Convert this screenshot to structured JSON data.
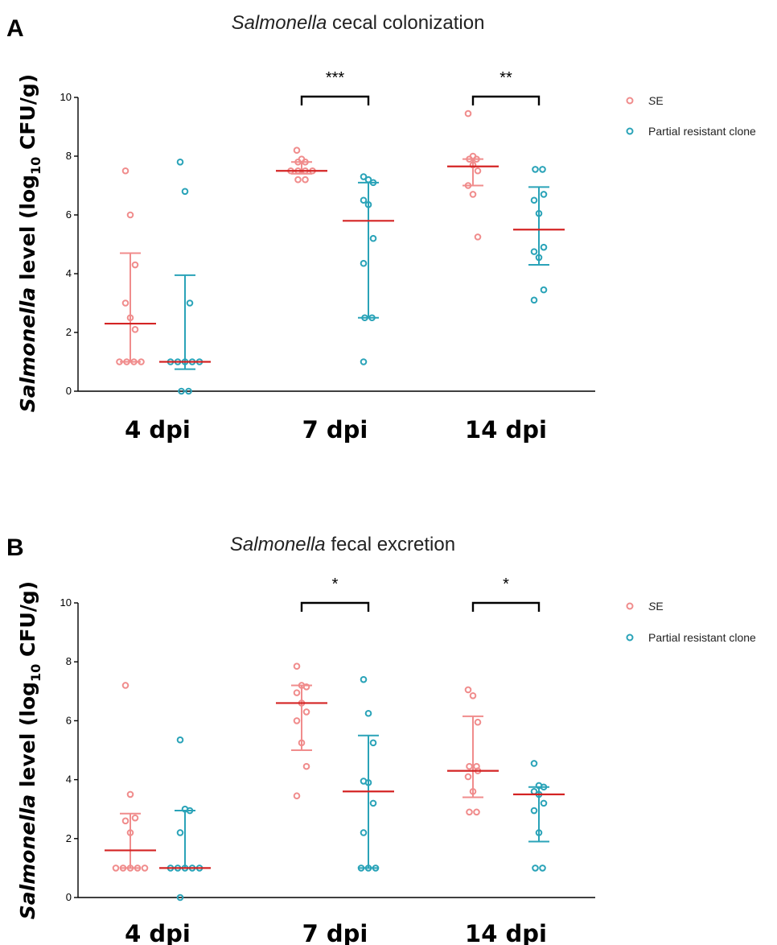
{
  "colors": {
    "se": "#f08c8c",
    "clone": "#2aa3b8",
    "median": "#d42424",
    "axis": "#000000"
  },
  "legend": [
    {
      "label_italic": "S",
      "label": "E",
      "color": "#f08c8c"
    },
    {
      "label_italic": "",
      "label": "Partial resistant clone",
      "color": "#2aa3b8"
    }
  ],
  "chart_data": [
    {
      "panel": "A",
      "type": "scatter",
      "title_italic": "Salmonella",
      "title": " cecal colonization",
      "ylabel_italic": "Salmonella",
      "ylabel": " level (log",
      "ylabel_sub": "10",
      "ylabel_end": " CFU/g)",
      "ylim": [
        0,
        10
      ],
      "yticks": [
        "0",
        "2",
        "4",
        "6",
        "8",
        "10"
      ],
      "categories": [
        "4 dpi",
        "7 dpi",
        "14 dpi"
      ],
      "series": [
        {
          "name": "SE",
          "groups": [
            {
              "points": [
                7.5,
                6.0,
                4.3,
                3.0,
                2.5,
                2.1,
                1.0,
                1.0,
                1.0,
                1.0
              ],
              "median": 2.3,
              "q1": 1.0,
              "q3": 4.7
            },
            {
              "points": [
                8.2,
                7.9,
                7.8,
                7.8,
                7.5,
                7.5,
                7.5,
                7.5,
                7.2,
                7.2
              ],
              "median": 7.5,
              "q1": 7.4,
              "q3": 7.8
            },
            {
              "points": [
                9.45,
                8.0,
                7.9,
                7.9,
                7.7,
                7.5,
                7.0,
                6.7,
                5.25
              ],
              "median": 7.65,
              "q1": 7.0,
              "q3": 7.9
            }
          ]
        },
        {
          "name": "Partial resistant clone",
          "groups": [
            {
              "points": [
                7.8,
                6.8,
                3.0,
                1.0,
                1.0,
                1.0,
                1.0,
                1.0,
                0.0,
                0.0
              ],
              "median": 1.0,
              "q1": 0.75,
              "q3": 3.95
            },
            {
              "points": [
                7.3,
                7.2,
                7.1,
                6.5,
                6.35,
                5.2,
                4.35,
                2.5,
                2.5,
                1.0
              ],
              "median": 5.8,
              "q1": 2.5,
              "q3": 7.1
            },
            {
              "points": [
                7.55,
                7.55,
                6.7,
                6.5,
                6.05,
                4.9,
                4.75,
                4.55,
                3.45,
                3.1
              ],
              "median": 5.5,
              "q1": 4.3,
              "q3": 6.95
            }
          ]
        }
      ],
      "significance": [
        {
          "category": 1,
          "label": "***"
        },
        {
          "category": 2,
          "label": "**"
        }
      ]
    },
    {
      "panel": "B",
      "type": "scatter",
      "title_italic": "Salmonella",
      "title": " fecal excretion",
      "ylabel_italic": "Salmonella",
      "ylabel": " level (log",
      "ylabel_sub": "10",
      "ylabel_end": " CFU/g)",
      "ylim": [
        0,
        10
      ],
      "yticks": [
        "0",
        "2",
        "4",
        "6",
        "8",
        "10"
      ],
      "categories": [
        "4 dpi",
        "7 dpi",
        "14 dpi"
      ],
      "series": [
        {
          "name": "SE",
          "groups": [
            {
              "points": [
                7.2,
                3.5,
                2.7,
                2.6,
                2.2,
                1.0,
                1.0,
                1.0,
                1.0,
                1.0
              ],
              "median": 1.6,
              "q1": 1.0,
              "q3": 2.85
            },
            {
              "points": [
                7.85,
                7.2,
                7.15,
                6.95,
                6.6,
                6.3,
                6.0,
                5.25,
                4.45,
                3.45
              ],
              "median": 6.6,
              "q1": 5.0,
              "q3": 7.2
            },
            {
              "points": [
                7.05,
                6.85,
                5.95,
                4.45,
                4.45,
                4.3,
                4.1,
                3.6,
                2.9,
                2.9
              ],
              "median": 4.3,
              "q1": 3.4,
              "q3": 6.15
            }
          ]
        },
        {
          "name": "Partial resistant clone",
          "groups": [
            {
              "points": [
                5.35,
                3.0,
                2.95,
                2.2,
                1.0,
                1.0,
                1.0,
                1.0,
                1.0,
                0.0
              ],
              "median": 1.0,
              "q1": 1.0,
              "q3": 2.95
            },
            {
              "points": [
                7.4,
                6.25,
                5.25,
                3.95,
                3.9,
                3.2,
                2.2,
                1.0,
                1.0,
                1.0
              ],
              "median": 3.6,
              "q1": 1.0,
              "q3": 5.5
            },
            {
              "points": [
                4.55,
                3.8,
                3.75,
                3.6,
                3.5,
                3.2,
                2.95,
                2.2,
                1.0,
                1.0
              ],
              "median": 3.5,
              "q1": 1.9,
              "q3": 3.75
            }
          ]
        }
      ],
      "significance": [
        {
          "category": 1,
          "label": "*"
        },
        {
          "category": 2,
          "label": "*"
        }
      ]
    }
  ]
}
